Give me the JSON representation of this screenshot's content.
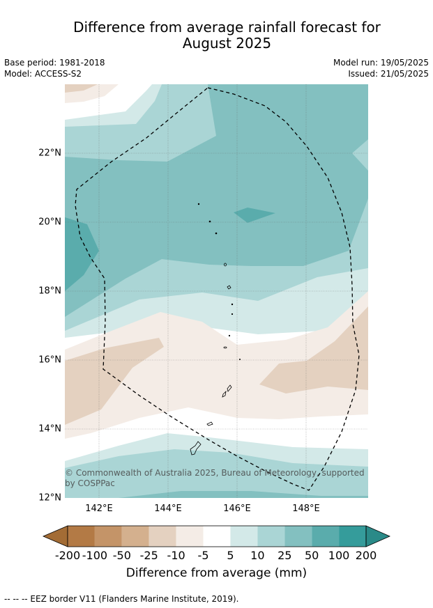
{
  "title_line1": "Difference from average rainfall forecast for",
  "title_line2": "August 2025",
  "meta": {
    "base_period": "Base period: 1981-2018",
    "model": "Model: ACCESS-S2",
    "model_run": "Model run: 19/05/2025",
    "issued": "Issued: 21/05/2025"
  },
  "map": {
    "lat_labels": [
      "22°N",
      "20°N",
      "18°N",
      "16°N",
      "14°N",
      "12°N"
    ],
    "lon_labels": [
      "142°E",
      "144°E",
      "146°E",
      "148°E"
    ],
    "copyright_line1": "© Commonwealth of Australia 2025, Bureau of Meteorology, supported",
    "copyright_line2": "by COSPPac"
  },
  "colorbar": {
    "ticks": [
      "-200",
      "-100",
      "-50",
      "-25",
      "-10",
      "-5",
      "5",
      "10",
      "25",
      "50",
      "100",
      "200"
    ],
    "colors": [
      "#a36c35",
      "#b37a45",
      "#c49468",
      "#d4b08e",
      "#e4d1c0",
      "#f4ece6",
      "#ffffff",
      "#d3e9e8",
      "#aad5d5",
      "#83c0c0",
      "#5aacac",
      "#359c9b",
      "#2a8a88"
    ],
    "label": "Difference from average (mm)"
  },
  "footnote": "--  --  -- EEZ border V11 (Flanders Marine Institute, 2019)."
}
